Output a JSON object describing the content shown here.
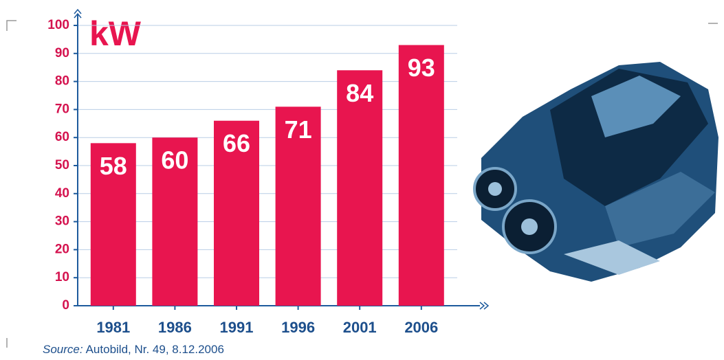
{
  "chart_data": {
    "type": "bar",
    "title": "kW",
    "categories": [
      "1981",
      "1986",
      "1991",
      "1996",
      "2001",
      "2006"
    ],
    "values": [
      58,
      60,
      66,
      71,
      84,
      93
    ],
    "color": "#e8154f",
    "ylim": [
      0,
      100
    ],
    "yticks": [
      0,
      10,
      20,
      30,
      40,
      50,
      60,
      70,
      80,
      90,
      100
    ],
    "grid": true,
    "source_label": "Source:",
    "source": "Autobild, Nr. 49, 8.12.2006"
  }
}
